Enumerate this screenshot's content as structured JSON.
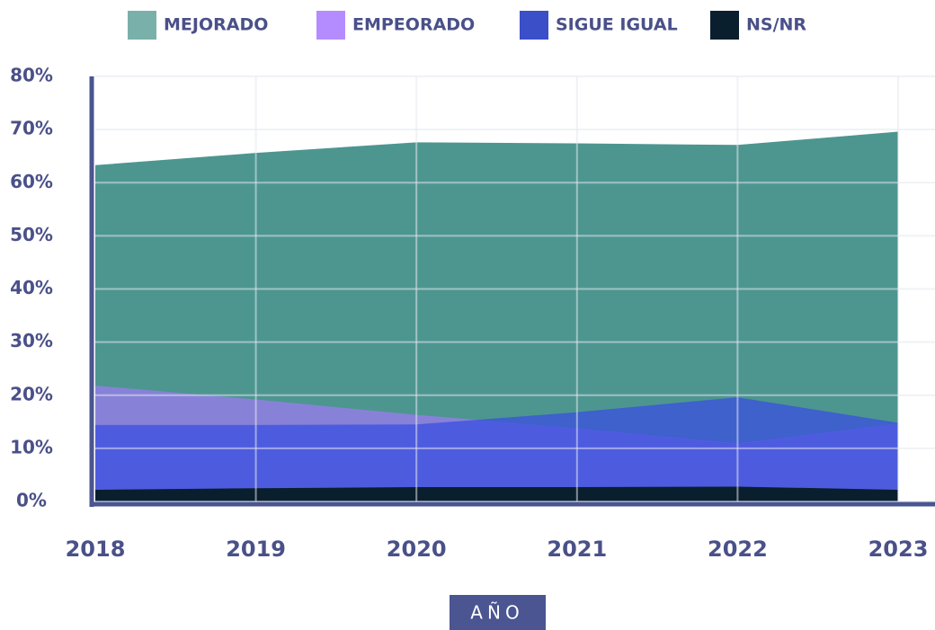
{
  "chart_data": {
    "type": "area",
    "categories": [
      "2018",
      "2019",
      "2020",
      "2021",
      "2022",
      "2023"
    ],
    "series": [
      {
        "name": "MEJORADO",
        "color": "#4d9690",
        "legend_color": "#7ab0aa",
        "values": [
          63.3,
          65.6,
          67.6,
          67.4,
          67.1,
          69.6
        ]
      },
      {
        "name": "EMPEORADO",
        "color": "#9b7bf0",
        "legend_color": "#b58cff",
        "values": [
          21.8,
          19.2,
          16.3,
          13.8,
          11.0,
          14.7
        ]
      },
      {
        "name": "SIGUE IGUAL",
        "color": "#3a4fe0",
        "legend_color": "#3a4fc8",
        "values": [
          14.4,
          14.4,
          14.5,
          16.8,
          19.6,
          14.8
        ]
      },
      {
        "name": "NS/NR",
        "color": "#0a1f2e",
        "legend_color": "#0a1f2e",
        "values": [
          2.2,
          2.5,
          2.7,
          2.7,
          2.8,
          2.2
        ]
      }
    ],
    "ylim": [
      0,
      80
    ],
    "yticks": [
      {
        "value": 0,
        "label": "0%"
      },
      {
        "value": 10,
        "label": "10%"
      },
      {
        "value": 20,
        "label": "20%"
      },
      {
        "value": 30,
        "label": "30%"
      },
      {
        "value": 40,
        "label": "40%"
      },
      {
        "value": 50,
        "label": "50%"
      },
      {
        "value": 60,
        "label": "60%"
      },
      {
        "value": 70,
        "label": "70%"
      },
      {
        "value": 80,
        "label": "80%"
      }
    ],
    "xlabel": "AÑO",
    "grid": true,
    "legend": "top"
  }
}
